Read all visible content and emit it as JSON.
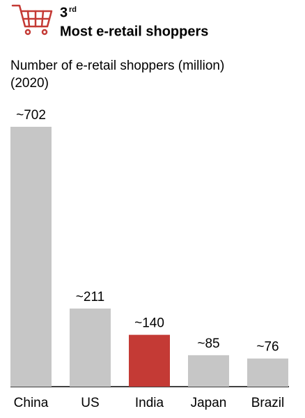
{
  "chart_data": {
    "type": "bar",
    "rank": "3",
    "rank_suffix": "rd",
    "headline": "Most e-retail shoppers",
    "title": "Number of e-retail shoppers (million)",
    "subtitle": "(2020)",
    "categories": [
      "China",
      "US",
      "India",
      "Japan",
      "Brazil"
    ],
    "values": [
      702,
      211,
      140,
      85,
      76
    ],
    "value_labels": [
      "~702",
      "~211",
      "~140",
      "~85",
      "~76"
    ],
    "colors": [
      "#c6c6c6",
      "#c6c6c6",
      "#c43a35",
      "#c6c6c6",
      "#c6c6c6"
    ]
  }
}
